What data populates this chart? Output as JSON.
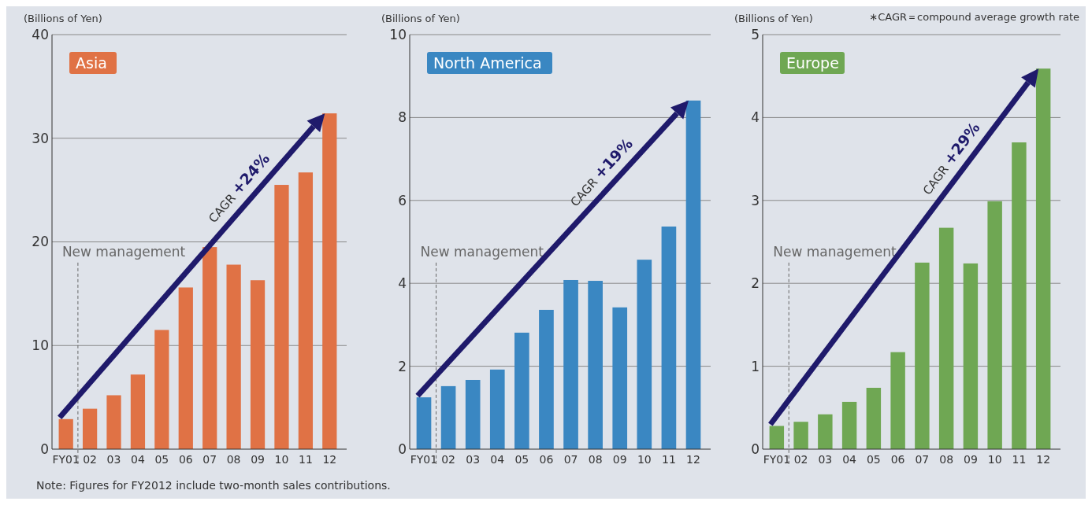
{
  "chart_data": [
    {
      "type": "bar",
      "title": "Asia",
      "ylabel": "(Billions of Yen)",
      "categories": [
        "FY01",
        "02",
        "03",
        "04",
        "05",
        "06",
        "07",
        "08",
        "09",
        "10",
        "11",
        "12"
      ],
      "values": [
        2.9,
        3.9,
        5.2,
        7.2,
        11.5,
        15.6,
        19.5,
        17.8,
        16.3,
        25.5,
        26.7,
        32.4
      ],
      "color": "#e07245",
      "ylim": [
        0,
        40
      ],
      "yticks": [
        0,
        10,
        20,
        30,
        40
      ],
      "grid": "y",
      "annotations": [
        "CAGR +24%",
        "New management",
        "Note: Figures for FY2012 include two-month sales contributions."
      ]
    },
    {
      "type": "bar",
      "title": "North America",
      "ylabel": "(Billions of Yen)",
      "categories": [
        "FY01",
        "02",
        "03",
        "04",
        "05",
        "06",
        "07",
        "08",
        "09",
        "10",
        "11",
        "12"
      ],
      "values": [
        1.25,
        1.52,
        1.67,
        1.92,
        2.81,
        3.36,
        4.08,
        4.06,
        3.42,
        4.57,
        5.37,
        8.41
      ],
      "color": "#3a87c2",
      "ylim": [
        0,
        10
      ],
      "yticks": [
        0,
        2,
        4,
        6,
        8,
        10
      ],
      "grid": "y",
      "annotations": [
        "CAGR +19%",
        "New management"
      ]
    },
    {
      "type": "bar",
      "title": "Europe",
      "ylabel": "(Billions of Yen)",
      "categories": [
        "FY01",
        "02",
        "03",
        "04",
        "05",
        "06",
        "07",
        "08",
        "09",
        "10",
        "11",
        "12"
      ],
      "values": [
        0.28,
        0.33,
        0.42,
        0.57,
        0.74,
        1.17,
        2.25,
        2.67,
        2.24,
        2.99,
        3.7,
        4.59
      ],
      "color": "#6fa753",
      "ylim": [
        0,
        5
      ],
      "yticks": [
        0,
        1,
        2,
        3,
        4,
        5
      ],
      "grid": "y",
      "annotations": [
        "CAGR +29%",
        "New management",
        "∗CAGR＝compound average growth rate"
      ]
    }
  ]
}
